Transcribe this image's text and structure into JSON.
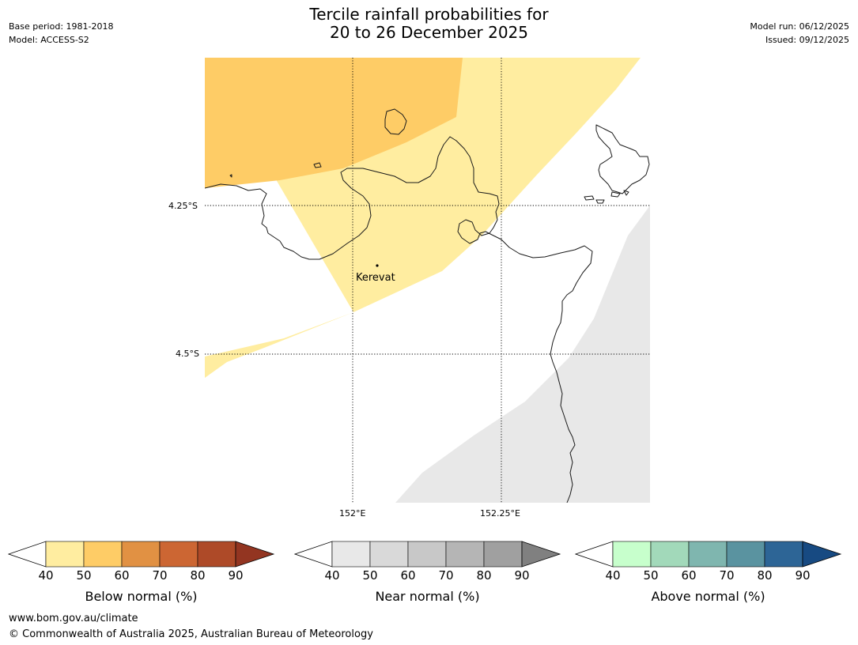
{
  "header": {
    "title_line1": "Tercile rainfall probabilities for",
    "title_line2": "20 to 26 December 2025",
    "base_period": "Base period: 1981-2018",
    "model": "Model: ACCESS-S2",
    "model_run": "Model run: 06/12/2025",
    "issued": "Issued: 09/12/2025"
  },
  "map": {
    "lat_labels": [
      "4.25°S",
      "4.5°S"
    ],
    "lon_labels": [
      "152°E",
      "152.25°E"
    ],
    "place_label": "Kerevat",
    "colors": {
      "below_50": "#FFEDA0",
      "below_60": "#FECC66",
      "near_50": "#E8E8E8",
      "coastline": "#1a1a1a"
    }
  },
  "colorbars": [
    {
      "name": "below",
      "label": "Below normal (%)",
      "ticks": [
        "40",
        "50",
        "60",
        "70",
        "80",
        "90"
      ],
      "colors": [
        "#FFEDA0",
        "#FECC66",
        "#E19143",
        "#CC6633",
        "#AE4A28",
        "#933521"
      ]
    },
    {
      "name": "near",
      "label": "Near normal (%)",
      "ticks": [
        "40",
        "50",
        "60",
        "70",
        "80",
        "90"
      ],
      "colors": [
        "#E8E8E8",
        "#D9D9D9",
        "#C8C8C8",
        "#B5B5B5",
        "#A0A0A0",
        "#808080"
      ]
    },
    {
      "name": "above",
      "label": "Above normal (%)",
      "ticks": [
        "40",
        "50",
        "60",
        "70",
        "80",
        "90"
      ],
      "colors": [
        "#C7FFCC",
        "#A2D9BA",
        "#7FB6AF",
        "#5A93A0",
        "#2D6596",
        "#174A82"
      ]
    }
  ],
  "footer": {
    "url": "www.bom.gov.au/climate",
    "copyright": "© Commonwealth of Australia 2025, Australian Bureau of Meteorology"
  }
}
